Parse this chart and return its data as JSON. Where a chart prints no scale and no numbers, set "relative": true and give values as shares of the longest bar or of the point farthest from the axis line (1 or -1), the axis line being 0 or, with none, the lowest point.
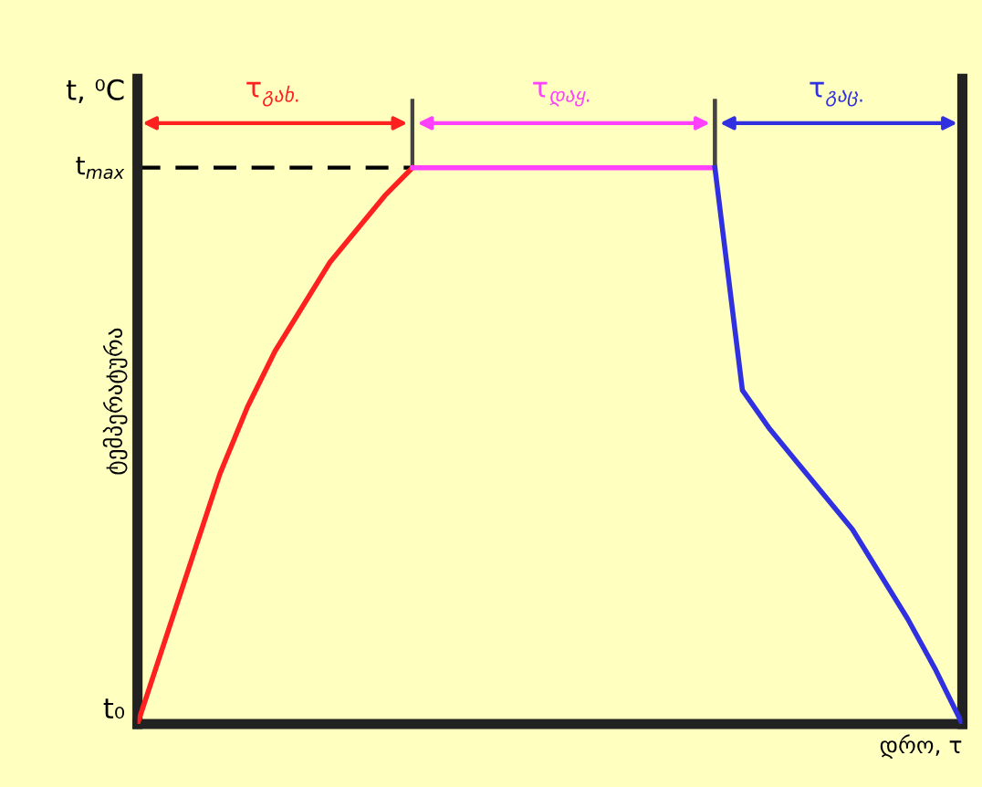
{
  "chart_data": {
    "type": "line",
    "relative": true,
    "ylabel": "ტემპერატურა",
    "xlabel": "დრო, τ",
    "categories": [
      null,
      null,
      null,
      null,
      null,
      null,
      null,
      null,
      null,
      null,
      null,
      null,
      null,
      null,
      null,
      null,
      null,
      null,
      null,
      null,
      null,
      null,
      null,
      null,
      null,
      null,
      null,
      null,
      null,
      null,
      null
    ],
    "series": [
      {
        "color": "#ff2020",
        "values": [
          0,
          0.15,
          0.3,
          0.45,
          0.57,
          0.67,
          0.75,
          0.83,
          0.89,
          0.95,
          1,
          null,
          null,
          null,
          null,
          null,
          null,
          null,
          null,
          null,
          null,
          null,
          null,
          null,
          null,
          null,
          null,
          null,
          null,
          null,
          null
        ]
      },
      {
        "color": "#ff40ff",
        "values": [
          null,
          null,
          null,
          null,
          null,
          null,
          null,
          null,
          null,
          null,
          1,
          1,
          1,
          1,
          1,
          1,
          1,
          1,
          1,
          1,
          1,
          1,
          null,
          null,
          null,
          null,
          null,
          null,
          null,
          null,
          null
        ]
      },
      {
        "color": "#3030e0",
        "values": [
          null,
          null,
          null,
          null,
          null,
          null,
          null,
          null,
          null,
          null,
          null,
          null,
          null,
          null,
          null,
          null,
          null,
          null,
          null,
          null,
          null,
          1,
          0.6,
          0.53,
          0.47,
          0.41,
          0.35,
          0.27,
          0.19,
          0.1,
          0
        ]
      }
    ],
    "ref_lines": [
      {
        "axis": "y",
        "value": 1,
        "label": "t$_{max}$",
        "color": "#000000",
        "line_style": "dashed"
      }
    ],
    "annotations": [
      "τ$_{გახ.}$",
      "τ$_{დაყ.}$",
      "τ$_{გაც.}$",
      "t, ⁰C",
      "t₀"
    ]
  }
}
